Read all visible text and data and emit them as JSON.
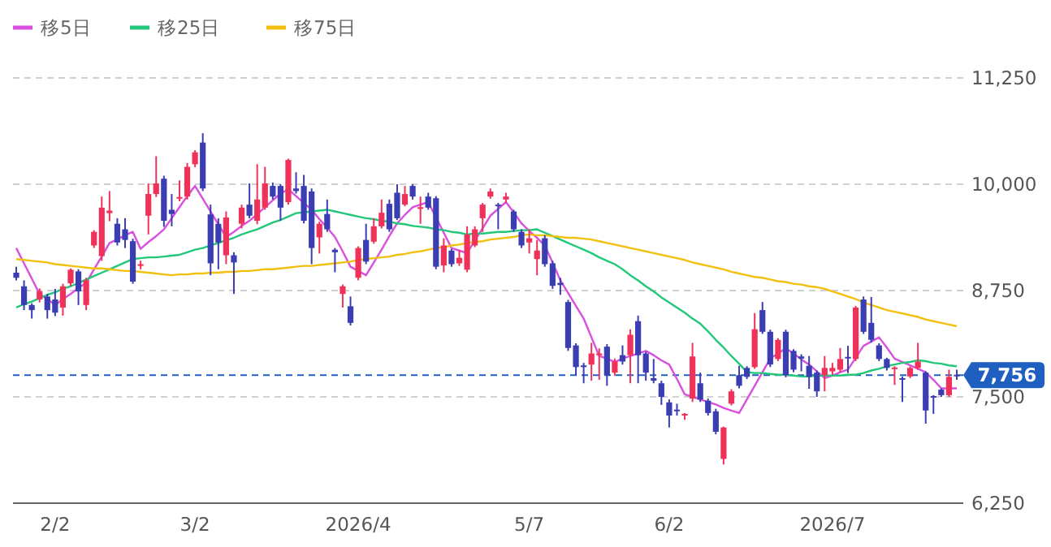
{
  "chart_data": {
    "type": "candlestick",
    "categories": [
      null,
      null,
      null,
      null,
      null,
      "2/2",
      null,
      null,
      null,
      null,
      null,
      null,
      null,
      null,
      null,
      null,
      null,
      null,
      null,
      null,
      null,
      null,
      null,
      "3/2",
      null,
      null,
      null,
      null,
      null,
      null,
      null,
      null,
      null,
      null,
      null,
      null,
      null,
      null,
      null,
      null,
      null,
      null,
      null,
      null,
      "2026/4",
      null,
      null,
      null,
      null,
      null,
      null,
      null,
      null,
      null,
      null,
      null,
      null,
      null,
      null,
      null,
      null,
      null,
      null,
      null,
      null,
      null,
      "5/7",
      null,
      null,
      null,
      null,
      null,
      null,
      null,
      null,
      null,
      null,
      null,
      null,
      null,
      null,
      null,
      null,
      null,
      "6/2",
      null,
      null,
      null,
      null,
      null,
      null,
      null,
      null,
      null,
      null,
      null,
      null,
      null,
      null,
      null,
      null,
      null,
      null,
      null,
      null,
      "2026/7",
      null,
      null,
      null,
      null,
      null,
      null,
      null,
      null,
      null,
      null,
      null,
      null,
      null,
      null,
      null,
      null
    ],
    "ohlc": [
      [
        8960,
        9030,
        8870,
        8900
      ],
      [
        8800,
        8870,
        8520,
        8580
      ],
      [
        8580,
        8600,
        8420,
        8520
      ],
      [
        8645,
        8775,
        8610,
        8740
      ],
      [
        8680,
        8710,
        8420,
        8520
      ],
      [
        8645,
        8770,
        8450,
        8490
      ],
      [
        8550,
        8830,
        8455,
        8800
      ],
      [
        8835,
        9010,
        8800,
        8995
      ],
      [
        8975,
        9000,
        8580,
        8740
      ],
      [
        8580,
        8900,
        8520,
        8870
      ],
      [
        9280,
        9460,
        9250,
        9440
      ],
      [
        9155,
        9855,
        9100,
        9725
      ],
      [
        9660,
        9920,
        9565,
        9690
      ],
      [
        9535,
        9600,
        9280,
        9315
      ],
      [
        9470,
        9600,
        9250,
        9345
      ],
      [
        9330,
        9360,
        8830,
        8855
      ],
      [
        9040,
        9100,
        9000,
        9060
      ],
      [
        9630,
        10010,
        9410,
        9885
      ],
      [
        9885,
        10330,
        9850,
        10010
      ],
      [
        10065,
        10100,
        9500,
        9570
      ],
      [
        9700,
        9885,
        9505,
        9650
      ],
      [
        9830,
        10045,
        9800,
        9850
      ],
      [
        9855,
        10250,
        9820,
        10205
      ],
      [
        10235,
        10400,
        10200,
        10375
      ],
      [
        10490,
        10600,
        9920,
        9950
      ],
      [
        9645,
        9760,
        8930,
        9070
      ],
      [
        9535,
        9600,
        9000,
        9315
      ],
      [
        9165,
        9680,
        9060,
        9610
      ],
      [
        9165,
        9200,
        8710,
        9080
      ],
      [
        9535,
        9760,
        9480,
        9725
      ],
      [
        9760,
        10010,
        9600,
        9630
      ],
      [
        9570,
        10235,
        9530,
        9820
      ],
      [
        9725,
        10205,
        9700,
        10010
      ],
      [
        9980,
        10020,
        9820,
        9855
      ],
      [
        9980,
        10000,
        9570,
        9725
      ],
      [
        9790,
        10300,
        9760,
        10285
      ],
      [
        9950,
        10140,
        9890,
        9920
      ],
      [
        9980,
        10110,
        9540,
        9570
      ],
      [
        9915,
        9950,
        9060,
        9250
      ],
      [
        9375,
        9560,
        9185,
        9535
      ],
      [
        9650,
        9820,
        9440,
        9470
      ],
      [
        9230,
        9250,
        8965,
        9200
      ],
      [
        8710,
        8820,
        8550,
        8800
      ],
      [
        8565,
        8680,
        8340,
        8370
      ],
      [
        8900,
        9270,
        8870,
        9250
      ],
      [
        9345,
        9535,
        9060,
        9090
      ],
      [
        9325,
        9600,
        9300,
        9505
      ],
      [
        9505,
        9820,
        9480,
        9665
      ],
      [
        9770,
        9820,
        9440,
        9470
      ],
      [
        9900,
        10000,
        9580,
        9600
      ],
      [
        9760,
        9980,
        9740,
        9885
      ],
      [
        9980,
        10000,
        9820,
        9855
      ],
      [
        9720,
        9855,
        9535,
        9730
      ],
      [
        9855,
        9900,
        9700,
        9725
      ],
      [
        9835,
        9860,
        9000,
        9030
      ],
      [
        9045,
        9365,
        8965,
        9280
      ],
      [
        9220,
        9240,
        9030,
        9060
      ],
      [
        9070,
        9220,
        9040,
        9135
      ],
      [
        8995,
        9505,
        8965,
        9410
      ],
      [
        9280,
        9505,
        9260,
        9470
      ],
      [
        9600,
        9780,
        9440,
        9760
      ],
      [
        9855,
        9950,
        9830,
        9915
      ],
      [
        9760,
        9780,
        9470,
        9745
      ],
      [
        9820,
        9900,
        9780,
        9855
      ],
      [
        9680,
        9700,
        9440,
        9470
      ],
      [
        9440,
        9470,
        9250,
        9280
      ],
      [
        9315,
        9470,
        9185,
        9365
      ],
      [
        9120,
        9345,
        8930,
        9220
      ],
      [
        9365,
        9400,
        9030,
        9060
      ],
      [
        9070,
        9100,
        8770,
        8805
      ],
      [
        8840,
        8900,
        8700,
        8815
      ],
      [
        8615,
        8640,
        8040,
        8075
      ],
      [
        8105,
        8130,
        7755,
        7850
      ],
      [
        7870,
        7900,
        7660,
        7850
      ],
      [
        7880,
        8135,
        7690,
        8010
      ],
      [
        7990,
        8070,
        7700,
        8010
      ],
      [
        8090,
        8120,
        7630,
        7755
      ],
      [
        7785,
        7950,
        7750,
        7915
      ],
      [
        7990,
        8105,
        7880,
        7915
      ],
      [
        7990,
        8295,
        7660,
        8230
      ],
      [
        8390,
        8455,
        7660,
        7990
      ],
      [
        8010,
        8030,
        7690,
        7785
      ],
      [
        7720,
        7945,
        7660,
        7690
      ],
      [
        7660,
        7690,
        7405,
        7500
      ],
      [
        7435,
        7470,
        7140,
        7280
      ],
      [
        7350,
        7420,
        7280,
        7340
      ],
      [
        7280,
        7310,
        7230,
        7300
      ],
      [
        7480,
        8135,
        7440,
        7975
      ],
      [
        7660,
        7785,
        7440,
        7470
      ],
      [
        7455,
        7480,
        7280,
        7310
      ],
      [
        7330,
        7360,
        7060,
        7090
      ],
      [
        6770,
        7150,
        6705,
        7140
      ],
      [
        7420,
        7590,
        7400,
        7565
      ],
      [
        7755,
        7865,
        7600,
        7630
      ],
      [
        7840,
        7860,
        7710,
        7735
      ],
      [
        7850,
        8485,
        7830,
        8295
      ],
      [
        8520,
        8615,
        8240,
        8265
      ],
      [
        8265,
        8290,
        7850,
        7880
      ],
      [
        7945,
        8190,
        7920,
        8170
      ],
      [
        8265,
        8290,
        7730,
        7755
      ],
      [
        8040,
        8060,
        7790,
        7820
      ],
      [
        7975,
        8000,
        7800,
        7950
      ],
      [
        7865,
        7980,
        7595,
        7735
      ],
      [
        7785,
        7810,
        7500,
        7565
      ],
      [
        7755,
        7980,
        7565,
        7840
      ],
      [
        7800,
        7900,
        7760,
        7840
      ],
      [
        7820,
        8075,
        7790,
        7945
      ],
      [
        7970,
        8100,
        7780,
        7960
      ],
      [
        7945,
        8570,
        7920,
        8550
      ],
      [
        8645,
        8680,
        8240,
        8265
      ],
      [
        8370,
        8675,
        8140,
        8170
      ],
      [
        8105,
        8130,
        7920,
        7945
      ],
      [
        7945,
        7960,
        7810,
        7840
      ],
      [
        7830,
        7860,
        7640,
        7845
      ],
      [
        7720,
        7740,
        7440,
        7710
      ],
      [
        7740,
        7860,
        7720,
        7840
      ],
      [
        7840,
        8135,
        7820,
        7915
      ],
      [
        7785,
        7800,
        7185,
        7340
      ],
      [
        7510,
        7520,
        7300,
        7500
      ],
      [
        7585,
        7600,
        7500,
        7520
      ],
      [
        7520,
        7820,
        7500,
        7735
      ],
      [
        7760,
        7820,
        7700,
        7756
      ]
    ],
    "series": [
      {
        "type": "line",
        "name": "移5日",
        "color": "#d94fe0",
        "values": [
          9250,
          9070,
          8890,
          8710,
          8650,
          8580,
          8650,
          8710,
          8780,
          8840,
          9000,
          9150,
          9310,
          9350,
          9400,
          9440,
          9240,
          9320,
          9390,
          9470,
          9600,
          9730,
          9860,
          9980,
          9830,
          9680,
          9530,
          9380,
          9440,
          9510,
          9570,
          9650,
          9730,
          9810,
          9890,
          9940,
          9860,
          9780,
          9700,
          9590,
          9490,
          9380,
          9210,
          9030,
          8980,
          8930,
          9080,
          9230,
          9390,
          9540,
          9640,
          9730,
          9760,
          9790,
          9610,
          9430,
          9250,
          9220,
          9190,
          9340,
          9480,
          9630,
          9710,
          9790,
          9670,
          9540,
          9450,
          9370,
          9280,
          9080,
          8870,
          8720,
          8570,
          8420,
          8200,
          7980,
          7950,
          7910,
          7950,
          7980,
          8010,
          8040,
          7990,
          7930,
          7880,
          7710,
          7530,
          7500,
          7470,
          7440,
          7410,
          7370,
          7340,
          7310,
          7470,
          7630,
          7790,
          7950,
          8010,
          8070,
          8010,
          7940,
          7880,
          7800,
          7720,
          7750,
          7790,
          7820,
          7960,
          8100,
          8150,
          8200,
          8080,
          7950,
          7910,
          7870,
          7830,
          7790,
          7700,
          7600,
          7600,
          7600
        ]
      },
      {
        "type": "line",
        "name": "移25日",
        "color": "#22c77a",
        "values": [
          8550,
          8590,
          8620,
          8660,
          8700,
          8730,
          8770,
          8800,
          8840,
          8880,
          8920,
          8960,
          9000,
          9040,
          9080,
          9120,
          9130,
          9140,
          9140,
          9150,
          9160,
          9170,
          9200,
          9230,
          9250,
          9280,
          9310,
          9340,
          9370,
          9410,
          9440,
          9470,
          9510,
          9550,
          9580,
          9620,
          9660,
          9670,
          9680,
          9690,
          9700,
          9680,
          9660,
          9640,
          9620,
          9600,
          9590,
          9570,
          9560,
          9540,
          9530,
          9510,
          9500,
          9490,
          9470,
          9460,
          9440,
          9430,
          9410,
          9420,
          9420,
          9430,
          9440,
          9440,
          9450,
          9460,
          9460,
          9470,
          9430,
          9390,
          9350,
          9310,
          9270,
          9230,
          9190,
          9140,
          9100,
          9060,
          9000,
          8930,
          8870,
          8800,
          8740,
          8670,
          8610,
          8550,
          8490,
          8420,
          8360,
          8270,
          8170,
          8080,
          7980,
          7890,
          7790,
          7780,
          7780,
          7770,
          7760,
          7760,
          7750,
          7740,
          7740,
          7750,
          7750,
          7750,
          7750,
          7760,
          7760,
          7780,
          7810,
          7830,
          7860,
          7880,
          7900,
          7910,
          7930,
          7920,
          7900,
          7890,
          7870,
          7860
        ]
      },
      {
        "type": "line",
        "name": "移75日",
        "color": "#f2c00f",
        "values": [
          9120,
          9110,
          9100,
          9090,
          9080,
          9060,
          9050,
          9040,
          9030,
          9020,
          9010,
          9010,
          9000,
          8990,
          8980,
          8980,
          8970,
          8960,
          8950,
          8940,
          8930,
          8940,
          8940,
          8950,
          8950,
          8960,
          8960,
          8970,
          8970,
          8980,
          8980,
          8990,
          9000,
          9000,
          9010,
          9020,
          9030,
          9040,
          9040,
          9050,
          9060,
          9070,
          9080,
          9090,
          9110,
          9120,
          9130,
          9140,
          9150,
          9170,
          9180,
          9200,
          9210,
          9230,
          9250,
          9260,
          9280,
          9290,
          9310,
          9320,
          9330,
          9350,
          9360,
          9370,
          9380,
          9400,
          9410,
          9400,
          9400,
          9390,
          9380,
          9370,
          9370,
          9360,
          9350,
          9330,
          9310,
          9290,
          9270,
          9250,
          9230,
          9210,
          9190,
          9170,
          9150,
          9130,
          9110,
          9080,
          9060,
          9040,
          9020,
          9000,
          8970,
          8950,
          8930,
          8910,
          8900,
          8880,
          8860,
          8850,
          8830,
          8820,
          8800,
          8790,
          8770,
          8740,
          8710,
          8680,
          8650,
          8610,
          8580,
          8550,
          8520,
          8500,
          8480,
          8460,
          8440,
          8410,
          8390,
          8370,
          8350,
          8330
        ]
      }
    ],
    "ylim": [
      6250,
      11250
    ],
    "yticks": [
      {
        "value": 6250,
        "label": "6,250"
      },
      {
        "value": 7500,
        "label": "7,500"
      },
      {
        "value": 8750,
        "label": "8,750"
      },
      {
        "value": 10000,
        "label": "10,000"
      },
      {
        "value": 11250,
        "label": "11,250"
      }
    ],
    "ref_lines": [
      {
        "axis": "y",
        "value": 7756,
        "label": "7,756",
        "color": "#1f5fbf",
        "line_style": "dashed"
      }
    ],
    "grid": "y",
    "legend": "top left"
  }
}
